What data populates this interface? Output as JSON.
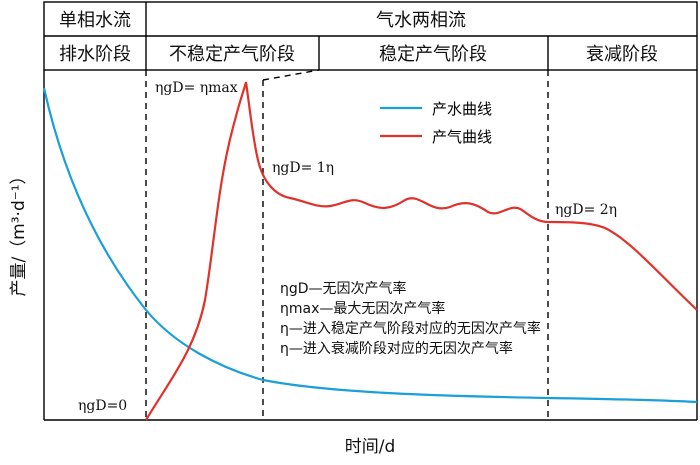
{
  "header": {
    "row1": {
      "left": "单相水流",
      "right": "气水两相流"
    },
    "row2": [
      "排水阶段",
      "不稳定产气阶段",
      "稳定产气阶段",
      "衰减阶段"
    ]
  },
  "annotations": {
    "peak": "ηgD= ηmax",
    "stable_start": "ηgD= 1η",
    "decline_start": "ηgD= 2η",
    "origin": "ηgD=0"
  },
  "legend": {
    "items": [
      {
        "label": "产水曲线",
        "color": "#1a9fd8"
      },
      {
        "label": "产气曲线",
        "color": "#e0322a"
      }
    ]
  },
  "definitions": [
    "ηgD—无因次产气率",
    "ηmax—最大无因次产气率",
    "η—进入稳定产气阶段对应的无因次产气率",
    "η—进入衰减阶段对应的无因次产气率"
  ],
  "axes": {
    "ylabel": "产量/（m³·d⁻¹）",
    "xlabel": "时间/d"
  },
  "colors": {
    "water": "#1a9fd8",
    "gas": "#e0322a",
    "frame": "#000000"
  }
}
